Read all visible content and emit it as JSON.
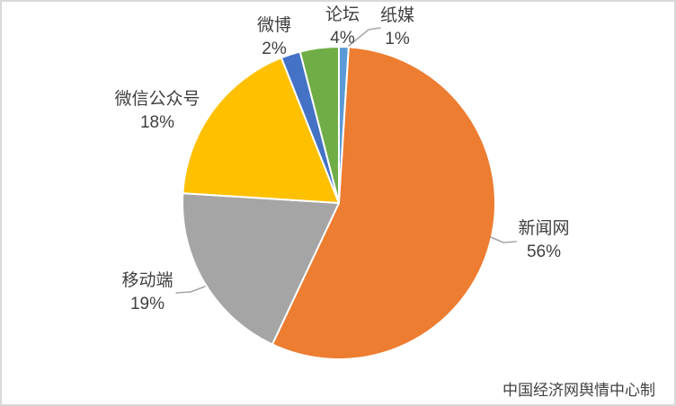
{
  "chart_data": {
    "type": "pie",
    "title": "",
    "legend": "none",
    "start_angle_deg": 0,
    "direction": "clockwise",
    "label_style": "category name and percentage outside slices",
    "slices": [
      {
        "label": "纸媒",
        "value": 1,
        "pct_label": "1%",
        "color": "#5B9BD5"
      },
      {
        "label": "新闻网",
        "value": 56,
        "pct_label": "56%",
        "color": "#ED7D31"
      },
      {
        "label": "移动端",
        "value": 19,
        "pct_label": "19%",
        "color": "#A5A5A5"
      },
      {
        "label": "微信公众号",
        "value": 18,
        "pct_label": "18%",
        "color": "#FFC000"
      },
      {
        "label": "微博",
        "value": 2,
        "pct_label": "2%",
        "color": "#4472C4"
      },
      {
        "label": "论坛",
        "value": 4,
        "pct_label": "4%",
        "color": "#70AD47"
      }
    ]
  },
  "footer": {
    "credit": "中国经济网舆情中心制"
  },
  "colors": {
    "background": "#FFFFFF",
    "frame_border": "#D9D9D9",
    "label_text": "#404040",
    "leader_line": "#A6A6A6",
    "slice_separator": "#FFFFFF"
  }
}
